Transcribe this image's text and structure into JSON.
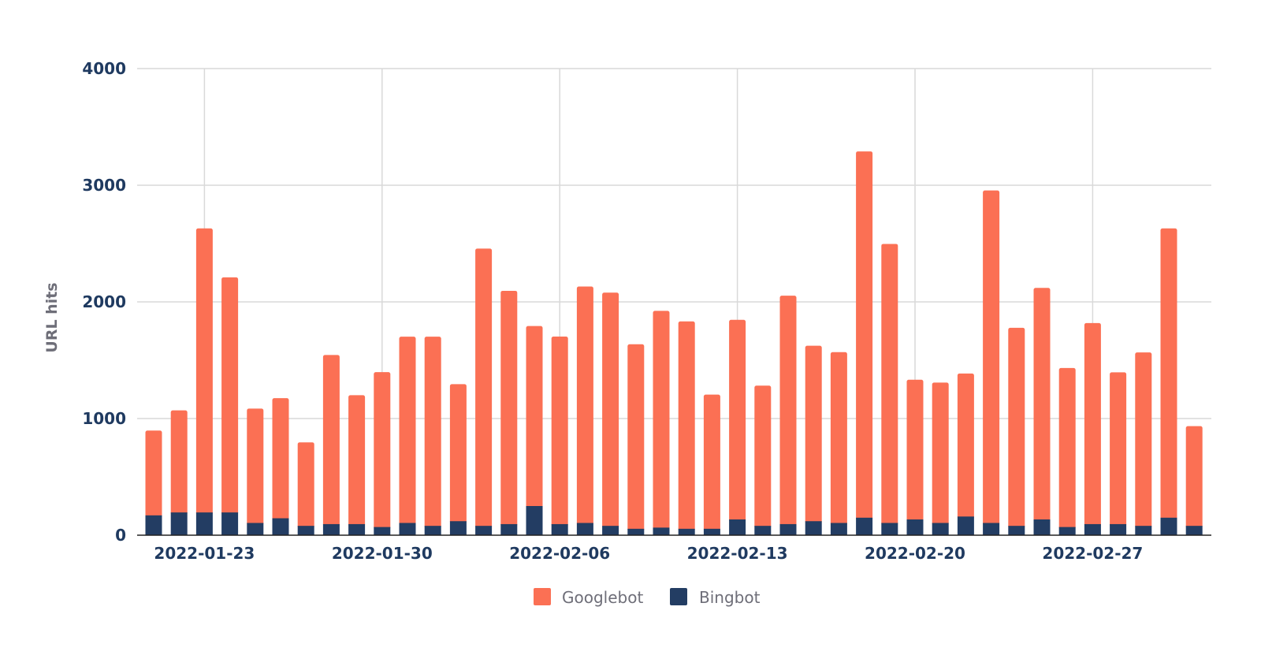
{
  "chart_data": {
    "type": "bar",
    "stacked": true,
    "title": "",
    "xlabel": "",
    "ylabel": "URL hits",
    "ylim": [
      0,
      4000
    ],
    "yticks": [
      0,
      1000,
      2000,
      3000,
      4000
    ],
    "grid": true,
    "legend_position": "bottom",
    "x_tick_labels": [
      {
        "label": "2022-01-23",
        "index": 2
      },
      {
        "label": "2022-01-30",
        "index": 9
      },
      {
        "label": "2022-02-06",
        "index": 16
      },
      {
        "label": "2022-02-13",
        "index": 23
      },
      {
        "label": "2022-02-20",
        "index": 30
      },
      {
        "label": "2022-02-27",
        "index": 37
      }
    ],
    "categories": [
      "2022-01-21",
      "2022-01-22",
      "2022-01-23",
      "2022-01-24",
      "2022-01-25",
      "2022-01-26",
      "2022-01-27",
      "2022-01-28",
      "2022-01-29",
      "2022-01-30",
      "2022-01-31",
      "2022-02-01",
      "2022-02-02",
      "2022-02-03",
      "2022-02-04",
      "2022-02-05",
      "2022-02-06",
      "2022-02-07",
      "2022-02-08",
      "2022-02-09",
      "2022-02-10",
      "2022-02-11",
      "2022-02-12",
      "2022-02-13",
      "2022-02-14",
      "2022-02-15",
      "2022-02-16",
      "2022-02-17",
      "2022-02-18",
      "2022-02-19",
      "2022-02-20",
      "2022-02-21",
      "2022-02-22",
      "2022-02-23",
      "2022-02-24",
      "2022-02-25",
      "2022-02-26",
      "2022-02-27",
      "2022-02-28",
      "2022-03-01",
      "2022-03-02",
      "2022-03-03"
    ],
    "series": [
      {
        "name": "Bingbot",
        "color": "#233d63",
        "values": [
          170,
          195,
          195,
          195,
          105,
          145,
          80,
          95,
          95,
          70,
          105,
          80,
          120,
          80,
          95,
          250,
          95,
          105,
          80,
          55,
          65,
          55,
          55,
          135,
          80,
          95,
          120,
          105,
          150,
          105,
          135,
          105,
          160,
          105,
          80,
          135,
          70,
          95,
          95,
          80,
          150,
          80
        ]
      },
      {
        "name": "Googlebot",
        "color": "#fb7054",
        "values": [
          727,
          875,
          2435,
          2015,
          980,
          1030,
          716,
          1450,
          1105,
          1328,
          1597,
          1622,
          1175,
          2377,
          2000,
          1543,
          1608,
          2027,
          1999,
          1582,
          1858,
          1778,
          1150,
          1711,
          1202,
          1958,
          1504,
          1464,
          3140,
          2392,
          1198,
          1203,
          1226,
          2850,
          1698,
          1985,
          1363,
          1723,
          1301,
          1487,
          2480,
          855
        ]
      }
    ]
  },
  "legend": {
    "items": [
      {
        "label": "Googlebot",
        "color": "#fb7054"
      },
      {
        "label": "Bingbot",
        "color": "#233d63"
      }
    ]
  }
}
